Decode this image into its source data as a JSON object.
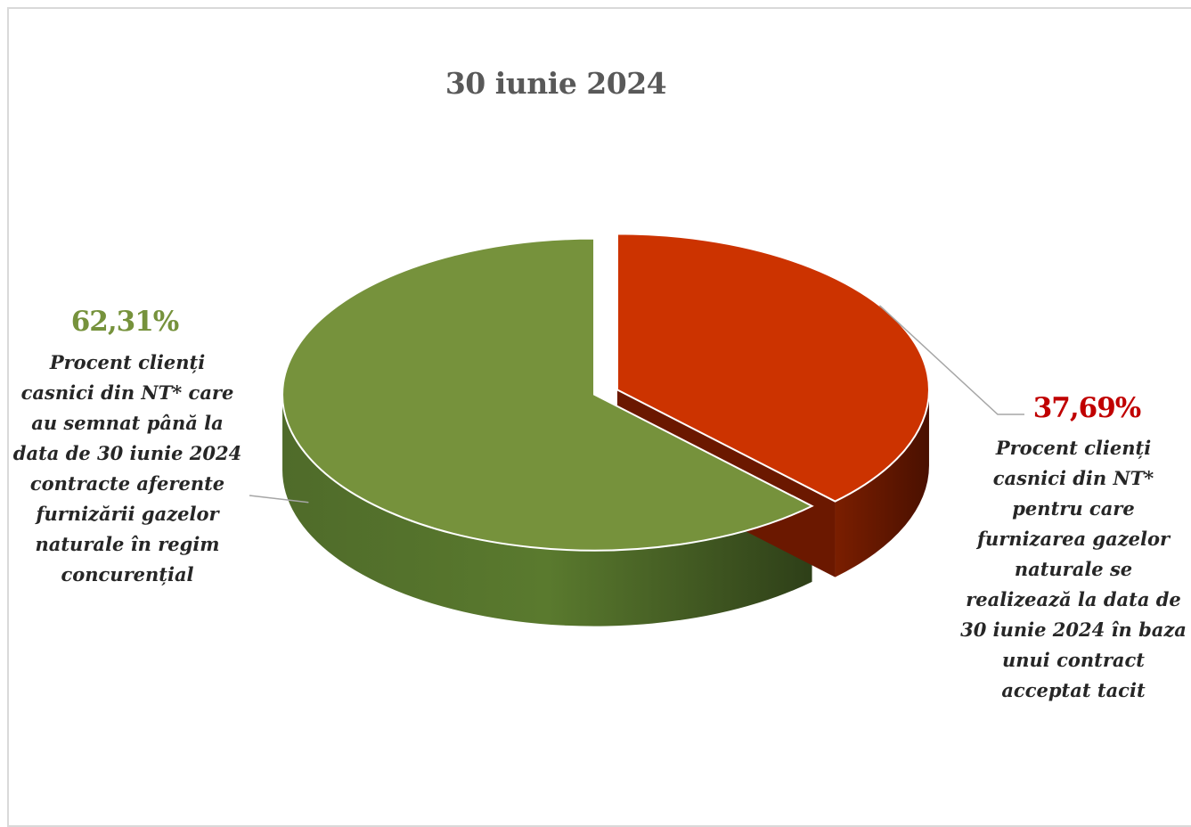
{
  "chart_data": {
    "type": "pie",
    "title": "30 iunie 2024",
    "slices": [
      {
        "value": 62.31,
        "label": "62,31%",
        "color": "#76923c",
        "description_lines": [
          "Procent clienți",
          "casnici din NT* care",
          "au semnat până la",
          "data de 30 iunie 2024",
          "contracte aferente",
          "furnizării gazelor",
          "naturale în regim",
          "concurențial"
        ]
      },
      {
        "value": 37.69,
        "label": "37,69%",
        "color": "#cc3300",
        "description_lines": [
          "Procent clienți",
          "casnici din NT*",
          "pentru care",
          "furnizarea gazelor",
          "naturale se",
          "realizează la data de",
          "30 iunie 2024 în baza",
          "unui contract",
          "acceptat tacit"
        ]
      }
    ],
    "legend": "none",
    "style": "3d-exploded"
  }
}
